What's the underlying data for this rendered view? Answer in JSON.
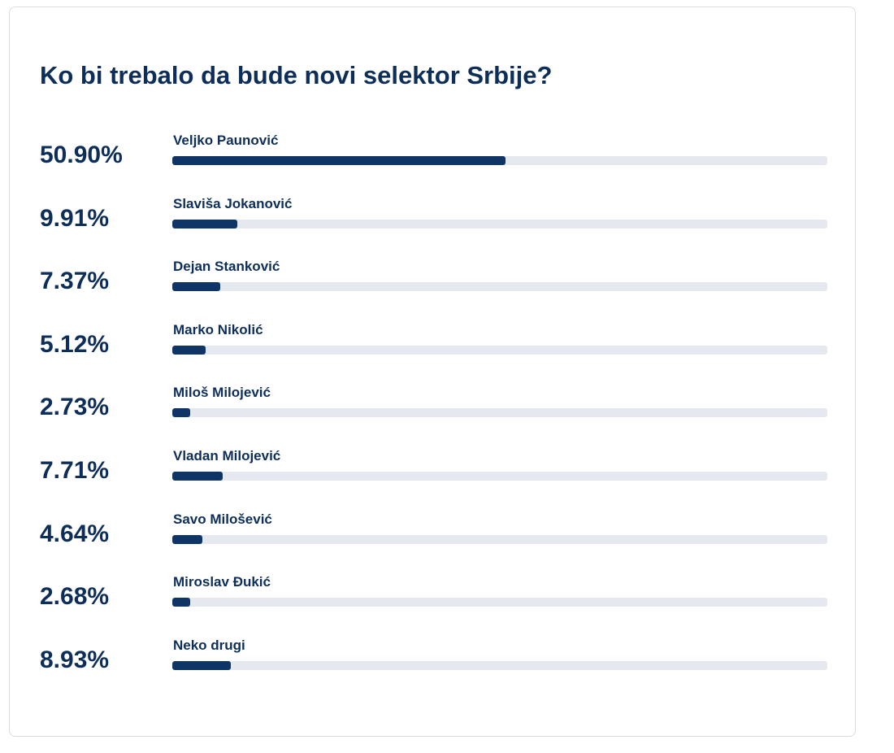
{
  "poll": {
    "title": "Ko bi trebalo da bude novi selektor Srbije?",
    "bar_color": "#0e3566",
    "track_color": "#e5e9ef",
    "options": [
      {
        "name": "Veljko Paunović",
        "percent_label": "50.90%",
        "value": 50.9
      },
      {
        "name": "Slaviša Jokanović",
        "percent_label": "9.91%",
        "value": 9.91
      },
      {
        "name": "Dejan Stanković",
        "percent_label": "7.37%",
        "value": 7.37
      },
      {
        "name": "Marko Nikolić",
        "percent_label": "5.12%",
        "value": 5.12
      },
      {
        "name": "Miloš Milojević",
        "percent_label": "2.73%",
        "value": 2.73
      },
      {
        "name": "Vladan Milojević",
        "percent_label": "7.71%",
        "value": 7.71
      },
      {
        "name": "Savo Milošević",
        "percent_label": "4.64%",
        "value": 4.64
      },
      {
        "name": "Miroslav Đukić",
        "percent_label": "2.68%",
        "value": 2.68
      },
      {
        "name": "Neko drugi",
        "percent_label": "8.93%",
        "value": 8.93
      }
    ]
  }
}
